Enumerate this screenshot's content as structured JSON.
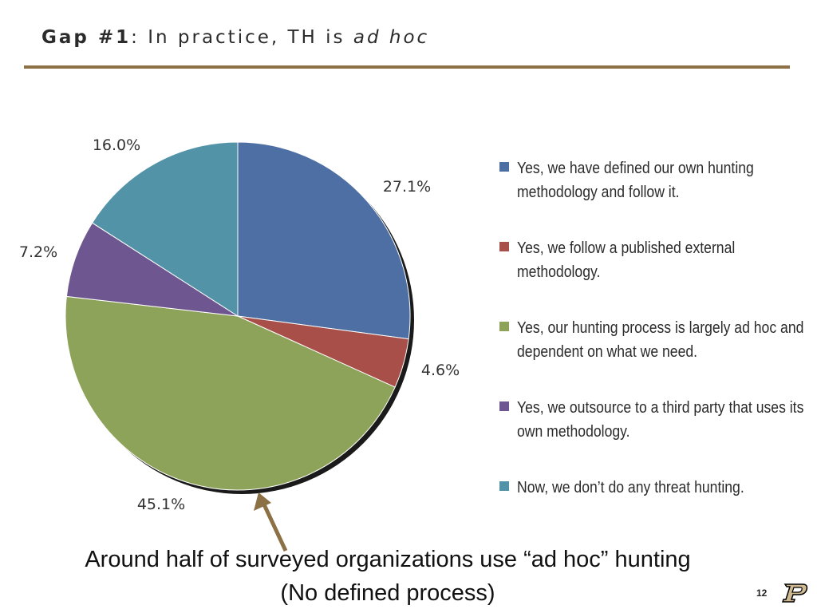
{
  "slide": {
    "title_bold": "Gap #1",
    "title_plain": ": In practice, TH is ",
    "title_italic": "ad hoc",
    "caption_line1": "Around half of surveyed organizations use “ad hoc” hunting",
    "caption_line2": "(No defined process)",
    "page_number": "12",
    "accent_color": "#8c7146",
    "logo_icon": "purdue-p-logo-icon"
  },
  "chart_data": {
    "type": "pie",
    "title": "",
    "legend_position": "right",
    "slices": [
      {
        "label": "Yes, we have defined our own hunting methodology and follow it.",
        "value": 27.1,
        "value_label": "27.1%",
        "color": "#4e6fa3"
      },
      {
        "label": "Yes, we follow a published external methodology.",
        "value": 4.6,
        "value_label": "4.6%",
        "color": "#a84f49"
      },
      {
        "label": "Yes, our hunting process is largely ad hoc and dependent on what we need.",
        "value": 45.1,
        "value_label": "45.1%",
        "color": "#8ea35a"
      },
      {
        "label": "Yes, we outsource to a third party that uses its own methodology.",
        "value": 7.2,
        "value_label": "7.2%",
        "color": "#6e5690"
      },
      {
        "label": "Now, we don’t do any threat hunting.",
        "value": 16.0,
        "value_label": "16.0%",
        "color": "#5293a7"
      }
    ]
  }
}
